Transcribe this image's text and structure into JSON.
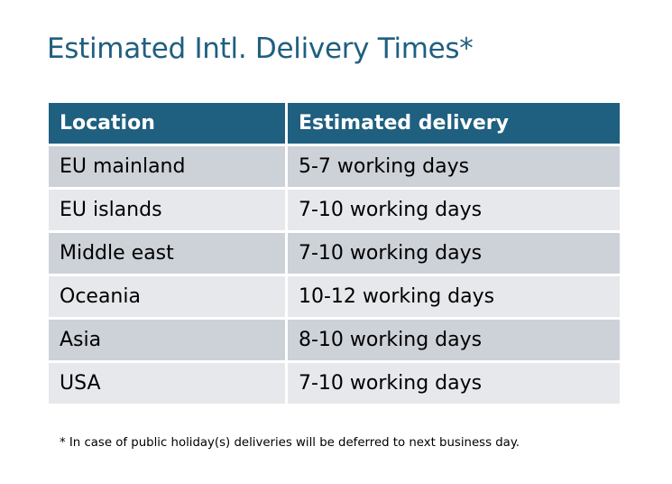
{
  "title": "Estimated Intl. Delivery Times*",
  "headers": [
    "Location",
    "Estimated delivery"
  ],
  "rows": [
    [
      "EU mainland",
      "5-7 working days"
    ],
    [
      "EU islands",
      "7-10 working days"
    ],
    [
      "Middle east",
      "7-10 working days"
    ],
    [
      "Oceania",
      "10-12 working days"
    ],
    [
      "Asia",
      "8-10 working days"
    ],
    [
      "USA",
      "7-10 working days"
    ]
  ],
  "footnote": "* In case of public holiday(s) deliveries will be deferred to next business day.",
  "colors": {
    "header": "#1f5f80",
    "row_odd": "#cdd1d8",
    "row_even": "#e6e8eb"
  }
}
